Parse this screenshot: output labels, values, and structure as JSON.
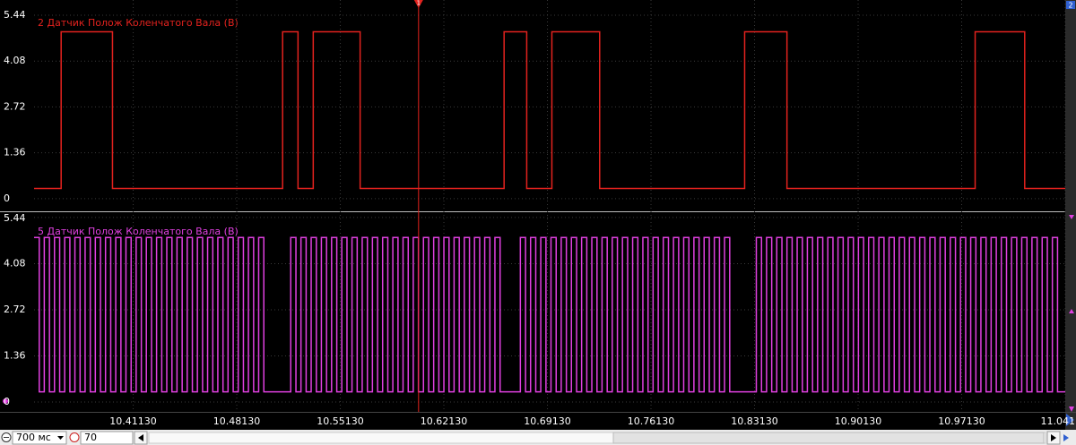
{
  "chart_data": [
    {
      "type": "line",
      "step": "post",
      "xlim": [
        10.3443,
        11.0413
      ],
      "ylim": [
        -0.35,
        5.76
      ],
      "yticks": [
        0,
        1.36,
        2.72,
        4.08,
        5.44
      ],
      "grid": true,
      "x": [
        10.3443,
        10.3626,
        10.3973,
        10.5123,
        10.5227,
        10.533,
        10.5647,
        10.662,
        10.6773,
        10.6943,
        10.7266,
        10.8246,
        10.8532,
        10.9804,
        11.0139,
        11.0413
      ],
      "series": [
        {
          "name": "2 Датчик Полож Коленчатого Вала (В)",
          "color": "#e3221e",
          "values": [
            0.3,
            4.95,
            0.3,
            4.95,
            0.3,
            4.95,
            0.3,
            4.95,
            0.3,
            4.95,
            0.3,
            4.95,
            0.3,
            4.95,
            0.3,
            0.3
          ]
        }
      ]
    },
    {
      "type": "line",
      "step": "post",
      "xlim": [
        10.3443,
        11.0413
      ],
      "ylim": [
        -0.29,
        5.57
      ],
      "yticks": [
        0,
        1.36,
        2.72,
        4.08,
        5.44
      ],
      "grid": true,
      "xticks": [
        {
          "value": 10.4113,
          "label": "10.41130"
        },
        {
          "value": 10.4813,
          "label": "10.48130"
        },
        {
          "value": 10.5513,
          "label": "10.55130"
        },
        {
          "value": 10.6213,
          "label": "10.62130"
        },
        {
          "value": 10.6913,
          "label": "10.69130"
        },
        {
          "value": 10.7613,
          "label": "10.76130"
        },
        {
          "value": 10.8313,
          "label": "10.83130"
        },
        {
          "value": 10.9013,
          "label": "10.90130"
        },
        {
          "value": 10.9713,
          "label": "10.97130"
        },
        {
          "value": 11.0413,
          "label": "11.041"
        }
      ],
      "x": [
        10.3443,
        10.3478,
        10.3512,
        10.3547,
        10.3581,
        10.3616,
        10.365,
        10.3685,
        10.3719,
        10.3754,
        10.3788,
        10.3823,
        10.3857,
        10.3892,
        10.3926,
        10.3961,
        10.3995,
        10.403,
        10.4064,
        10.4099,
        10.4133,
        10.4168,
        10.4202,
        10.4237,
        10.4271,
        10.4306,
        10.434,
        10.4375,
        10.4409,
        10.4444,
        10.4478,
        10.4513,
        10.4547,
        10.4582,
        10.4616,
        10.4651,
        10.4685,
        10.472,
        10.4754,
        10.4789,
        10.4823,
        10.4858,
        10.4892,
        10.4927,
        10.4961,
        10.4996,
        10.5178,
        10.5213,
        10.5247,
        10.5282,
        10.5316,
        10.5351,
        10.5385,
        10.542,
        10.5454,
        10.5489,
        10.5523,
        10.5558,
        10.5592,
        10.5627,
        10.5661,
        10.5696,
        10.573,
        10.5765,
        10.5799,
        10.5834,
        10.5868,
        10.5903,
        10.5937,
        10.5972,
        10.6006,
        10.6041,
        10.6075,
        10.611,
        10.6144,
        10.6179,
        10.6213,
        10.6248,
        10.6282,
        10.6317,
        10.6351,
        10.6386,
        10.642,
        10.6455,
        10.6489,
        10.6524,
        10.6558,
        10.6593,
        10.673,
        10.6765,
        10.6799,
        10.6834,
        10.6868,
        10.6903,
        10.6937,
        10.6972,
        10.7006,
        10.7041,
        10.7075,
        10.711,
        10.7144,
        10.7179,
        10.7213,
        10.7248,
        10.7282,
        10.7317,
        10.7351,
        10.7386,
        10.742,
        10.7455,
        10.7489,
        10.7524,
        10.7558,
        10.7593,
        10.7627,
        10.7662,
        10.7696,
        10.7731,
        10.7765,
        10.78,
        10.7834,
        10.7869,
        10.7903,
        10.7938,
        10.7972,
        10.8007,
        10.8041,
        10.8076,
        10.811,
        10.8145,
        10.8325,
        10.836,
        10.8394,
        10.8429,
        10.8463,
        10.8498,
        10.8532,
        10.8567,
        10.8601,
        10.8636,
        10.867,
        10.8705,
        10.8739,
        10.8774,
        10.8808,
        10.8843,
        10.8877,
        10.8912,
        10.8946,
        10.8981,
        10.9015,
        10.905,
        10.9084,
        10.9119,
        10.9153,
        10.9188,
        10.9222,
        10.9257,
        10.9291,
        10.9326,
        10.936,
        10.9395,
        10.9429,
        10.9464,
        10.9498,
        10.9533,
        10.9567,
        10.9602,
        10.9636,
        10.9671,
        10.9705,
        10.974,
        10.9774,
        10.9809,
        10.9843,
        10.9878,
        10.9912,
        10.9947,
        10.9981,
        11.0016,
        11.005,
        11.0085,
        11.0119,
        11.0154,
        11.0188,
        11.0223,
        11.0257,
        11.0292,
        11.0326,
        11.0361,
        11.0413
      ],
      "series": [
        {
          "name": "5 Датчик Полож Коленчатого Вала (В)",
          "color": "#e040e0",
          "values": [
            4.85,
            0.3,
            4.85,
            0.3,
            4.85,
            0.3,
            4.85,
            0.3,
            4.85,
            0.3,
            4.85,
            0.3,
            4.85,
            0.3,
            4.85,
            0.3,
            4.85,
            0.3,
            4.85,
            0.3,
            4.85,
            0.3,
            4.85,
            0.3,
            4.85,
            0.3,
            4.85,
            0.3,
            4.85,
            0.3,
            4.85,
            0.3,
            4.85,
            0.3,
            4.85,
            0.3,
            4.85,
            0.3,
            4.85,
            0.3,
            4.85,
            0.3,
            4.85,
            0.3,
            4.85,
            0.3,
            4.85,
            0.3,
            4.85,
            0.3,
            4.85,
            0.3,
            4.85,
            0.3,
            4.85,
            0.3,
            4.85,
            0.3,
            4.85,
            0.3,
            4.85,
            0.3,
            4.85,
            0.3,
            4.85,
            0.3,
            4.85,
            0.3,
            4.85,
            0.3,
            4.85,
            0.3,
            4.85,
            0.3,
            4.85,
            0.3,
            4.85,
            0.3,
            4.85,
            0.3,
            4.85,
            0.3,
            4.85,
            0.3,
            4.85,
            0.3,
            4.85,
            0.3,
            4.85,
            0.3,
            4.85,
            0.3,
            4.85,
            0.3,
            4.85,
            0.3,
            4.85,
            0.3,
            4.85,
            0.3,
            4.85,
            0.3,
            4.85,
            0.3,
            4.85,
            0.3,
            4.85,
            0.3,
            4.85,
            0.3,
            4.85,
            0.3,
            4.85,
            0.3,
            4.85,
            0.3,
            4.85,
            0.3,
            4.85,
            0.3,
            4.85,
            0.3,
            4.85,
            0.3,
            4.85,
            0.3,
            4.85,
            0.3,
            4.85,
            0.3,
            4.85,
            0.3,
            4.85,
            0.3,
            4.85,
            0.3,
            4.85,
            0.3,
            4.85,
            0.3,
            4.85,
            0.3,
            4.85,
            0.3,
            4.85,
            0.3,
            4.85,
            0.3,
            4.85,
            0.3,
            4.85,
            0.3,
            4.85,
            0.3,
            4.85,
            0.3,
            4.85,
            0.3,
            4.85,
            0.3,
            4.85,
            0.3,
            4.85,
            0.3,
            4.85,
            0.3,
            4.85,
            0.3,
            4.85,
            0.3,
            4.85,
            0.3,
            4.85,
            0.3,
            4.85,
            0.3,
            4.85,
            0.3,
            4.85,
            0.3,
            4.85,
            0.3,
            4.85,
            0.3,
            4.85,
            0.3,
            4.85,
            0.3,
            4.85,
            0.3,
            0.3
          ]
        }
      ]
    }
  ],
  "cursor": {
    "label": "1",
    "x": 10.6042
  },
  "right_marker": "2",
  "toolbar": {
    "timebase": "700 мс",
    "zoom": "70"
  }
}
